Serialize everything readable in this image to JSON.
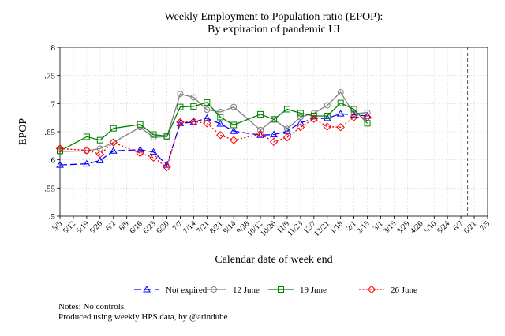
{
  "chart_data": {
    "type": "line",
    "title": [
      "Weekly Employment to Population ratio (EPOP):",
      "By expiration of pandemic UI"
    ],
    "xlabel": "Calendar date of week end",
    "ylabel": "EPOP",
    "ylim": [
      0.5,
      0.8
    ],
    "yticks": [
      ".5",
      ".55",
      ".6",
      ".65",
      ".7",
      ".75",
      ".8"
    ],
    "categories": [
      "5/5",
      "5/12",
      "5/19",
      "5/26",
      "6/2",
      "6/9",
      "6/16",
      "6/23",
      "6/30",
      "7/7",
      "7/14",
      "7/21",
      "8/31",
      "9/14",
      "9/28",
      "10/12",
      "10/26",
      "11/9",
      "11/23",
      "12/7",
      "12/21",
      "1/18",
      "2/1",
      "2/15",
      "3/1",
      "3/15",
      "3/29",
      "4/26",
      "5/10",
      "5/24",
      "6/7",
      "6/21",
      "7/5"
    ],
    "vline_after": "6/7",
    "grid": true,
    "legend_position": "bottom",
    "series": [
      {
        "name": "Not expired",
        "color": "#0000ff",
        "marker": "triangle",
        "dash": "long-dash",
        "points": [
          [
            0,
            0.591
          ],
          [
            2,
            0.593
          ],
          [
            3,
            0.599
          ],
          [
            4,
            0.616
          ],
          [
            6,
            0.618
          ],
          [
            7,
            0.614
          ],
          [
            8,
            0.591
          ],
          [
            9,
            0.665
          ],
          [
            10,
            0.667
          ],
          [
            11,
            0.674
          ],
          [
            12,
            0.664
          ],
          [
            13,
            0.651
          ],
          [
            15,
            0.644
          ],
          [
            16,
            0.645
          ],
          [
            17,
            0.651
          ],
          [
            18,
            0.666
          ],
          [
            19,
            0.673
          ],
          [
            20,
            0.674
          ],
          [
            21,
            0.682
          ],
          [
            22,
            0.68
          ],
          [
            23,
            0.678
          ]
        ]
      },
      {
        "name": "12 June",
        "color": "#808080",
        "marker": "circle",
        "dash": "solid",
        "points": [
          [
            0,
            0.615
          ],
          [
            2,
            0.616
          ],
          [
            3,
            0.62
          ],
          [
            4,
            0.631
          ],
          [
            6,
            0.658
          ],
          [
            7,
            0.64
          ],
          [
            8,
            0.641
          ],
          [
            9,
            0.717
          ],
          [
            10,
            0.711
          ],
          [
            11,
            0.689
          ],
          [
            12,
            0.685
          ],
          [
            13,
            0.694
          ],
          [
            15,
            0.653
          ],
          [
            16,
            0.672
          ],
          [
            17,
            0.655
          ],
          [
            18,
            0.676
          ],
          [
            19,
            0.683
          ],
          [
            20,
            0.697
          ],
          [
            21,
            0.72
          ],
          [
            22,
            0.682
          ],
          [
            23,
            0.684
          ]
        ]
      },
      {
        "name": "19 June",
        "color": "#008000",
        "marker": "square",
        "dash": "solid",
        "points": [
          [
            0,
            0.616
          ],
          [
            2,
            0.641
          ],
          [
            3,
            0.635
          ],
          [
            4,
            0.656
          ],
          [
            6,
            0.663
          ],
          [
            7,
            0.645
          ],
          [
            8,
            0.642
          ],
          [
            9,
            0.694
          ],
          [
            10,
            0.695
          ],
          [
            11,
            0.702
          ],
          [
            12,
            0.676
          ],
          [
            13,
            0.662
          ],
          [
            15,
            0.681
          ],
          [
            16,
            0.672
          ],
          [
            17,
            0.69
          ],
          [
            18,
            0.683
          ],
          [
            19,
            0.678
          ],
          [
            20,
            0.678
          ],
          [
            21,
            0.701
          ],
          [
            22,
            0.69
          ],
          [
            23,
            0.665
          ]
        ]
      },
      {
        "name": "26 June",
        "color": "#ff0000",
        "marker": "diamond",
        "dash": "short-dash",
        "points": [
          [
            0,
            0.62
          ],
          [
            2,
            0.617
          ],
          [
            3,
            0.61
          ],
          [
            4,
            0.631
          ],
          [
            6,
            0.612
          ],
          [
            7,
            0.604
          ],
          [
            8,
            0.587
          ],
          [
            9,
            0.667
          ],
          [
            10,
            0.668
          ],
          [
            11,
            0.665
          ],
          [
            12,
            0.644
          ],
          [
            13,
            0.635
          ],
          [
            15,
            0.646
          ],
          [
            16,
            0.632
          ],
          [
            17,
            0.64
          ],
          [
            18,
            0.658
          ],
          [
            19,
            0.673
          ],
          [
            20,
            0.659
          ],
          [
            21,
            0.658
          ],
          [
            22,
            0.676
          ],
          [
            23,
            0.676
          ]
        ]
      }
    ]
  },
  "notes": [
    "Notes: No controls.",
    "Produced using weekly HPS data, by @arindube"
  ]
}
